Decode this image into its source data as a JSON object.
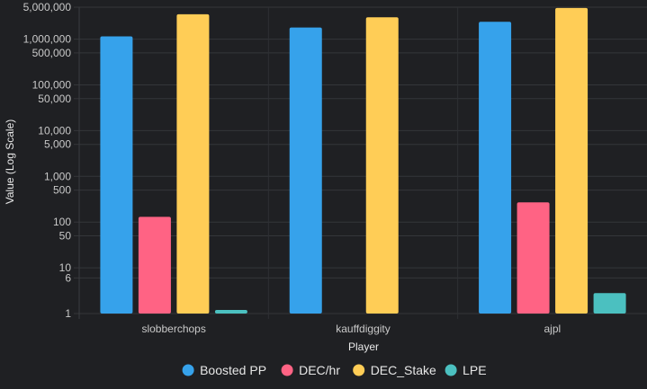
{
  "chart_data": {
    "type": "bar",
    "scale": "log",
    "xlabel": "Player",
    "ylabel": "Value (Log Scale)",
    "ylim": [
      1,
      5000000
    ],
    "categories": [
      "slobberchops",
      "kauffdiggity",
      "ajpl"
    ],
    "yticks": [
      {
        "value": 1,
        "label": "1"
      },
      {
        "value": 6,
        "label": "6"
      },
      {
        "value": 10,
        "label": "10"
      },
      {
        "value": 50,
        "label": "50"
      },
      {
        "value": 100,
        "label": "100"
      },
      {
        "value": 500,
        "label": "500"
      },
      {
        "value": 1000,
        "label": "1,000"
      },
      {
        "value": 5000,
        "label": "5,000"
      },
      {
        "value": 10000,
        "label": "10,000"
      },
      {
        "value": 50000,
        "label": "50,000"
      },
      {
        "value": 100000,
        "label": "100,000"
      },
      {
        "value": 500000,
        "label": "500,000"
      },
      {
        "value": 1000000,
        "label": "1,000,000"
      },
      {
        "value": 5000000,
        "label": "5,000,000"
      }
    ],
    "series": [
      {
        "name": "Boosted PP",
        "color": "#36a2eb",
        "values": [
          1150000,
          1800000,
          2400000
        ]
      },
      {
        "name": "DEC/hr",
        "color": "#ff6384",
        "values": [
          130,
          null,
          270
        ]
      },
      {
        "name": "DEC_Stake",
        "color": "#ffcd56",
        "values": [
          3500000,
          3000000,
          4800000
        ]
      },
      {
        "name": "LPE",
        "color": "#4bc0c0",
        "values": [
          1.2,
          null,
          2.8
        ]
      }
    ],
    "grid": true,
    "legend_position": "bottom"
  }
}
